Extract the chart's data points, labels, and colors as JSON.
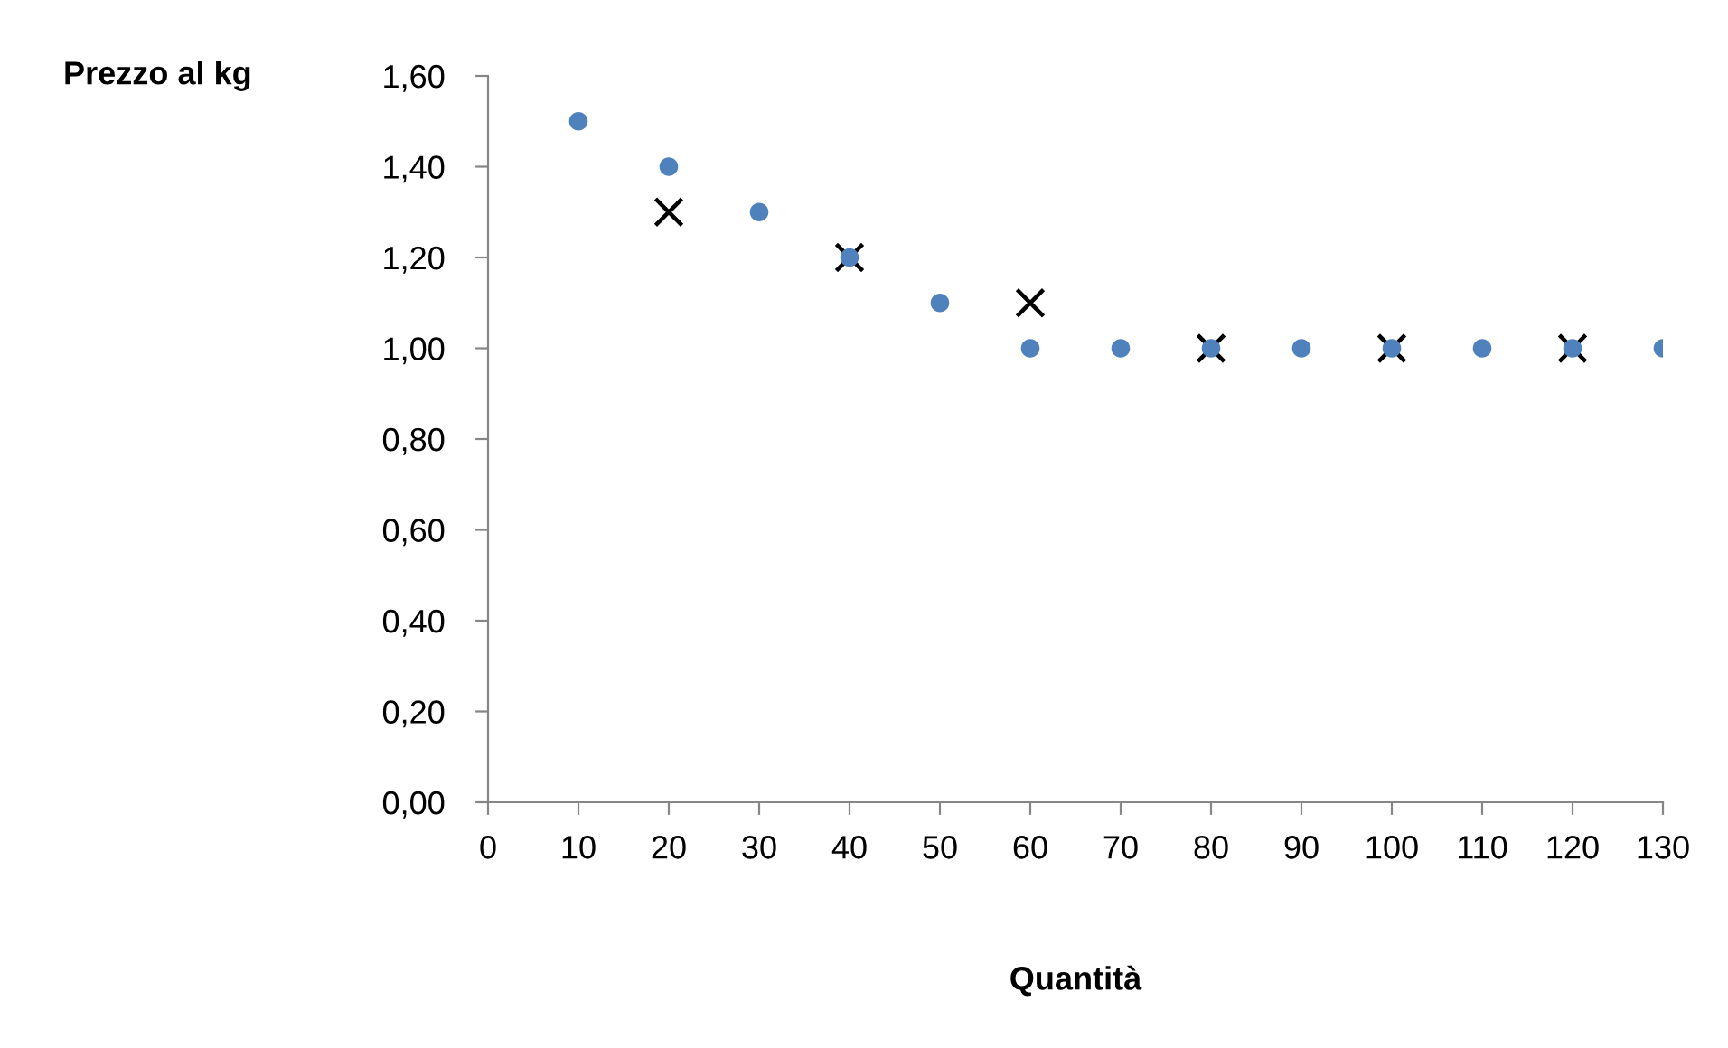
{
  "chart_data": {
    "type": "scatter",
    "ylabel": "Prezzo al kg",
    "xlabel": "Quantità",
    "series": [
      {
        "color": "#4f81bd",
        "marker": "circle",
        "x": [
          10,
          20,
          30,
          40,
          50,
          60,
          70,
          80,
          90,
          100,
          110,
          120,
          130
        ],
        "values": [
          1.5,
          1.4,
          1.3,
          1.2,
          1.1,
          1.0,
          1.0,
          1.0,
          1.0,
          1.0,
          1.0,
          1.0,
          1.0
        ]
      },
      {
        "color": "#000000",
        "marker": "cross",
        "x": [
          20,
          40,
          60,
          80,
          100,
          120
        ],
        "values": [
          1.3,
          1.2,
          1.1,
          1.0,
          1.0,
          1.0
        ]
      }
    ],
    "xlim": [
      0,
      130
    ],
    "xticks": [
      0,
      10,
      20,
      30,
      40,
      50,
      60,
      70,
      80,
      90,
      100,
      110,
      120,
      130
    ],
    "ylim": [
      0,
      1.6
    ],
    "yticks": [
      {
        "value": 0,
        "label": "0,00"
      },
      {
        "value": 0.2,
        "label": "0,20"
      },
      {
        "value": 0.4,
        "label": "0,40"
      },
      {
        "value": 0.6,
        "label": "0,60"
      },
      {
        "value": 0.8,
        "label": "0,80"
      },
      {
        "value": 1.0,
        "label": "1,00"
      },
      {
        "value": 1.2,
        "label": "1,20"
      },
      {
        "value": 1.4,
        "label": "1,40"
      },
      {
        "value": 1.6,
        "label": "1,60"
      }
    ],
    "grid": false,
    "legend": false
  }
}
